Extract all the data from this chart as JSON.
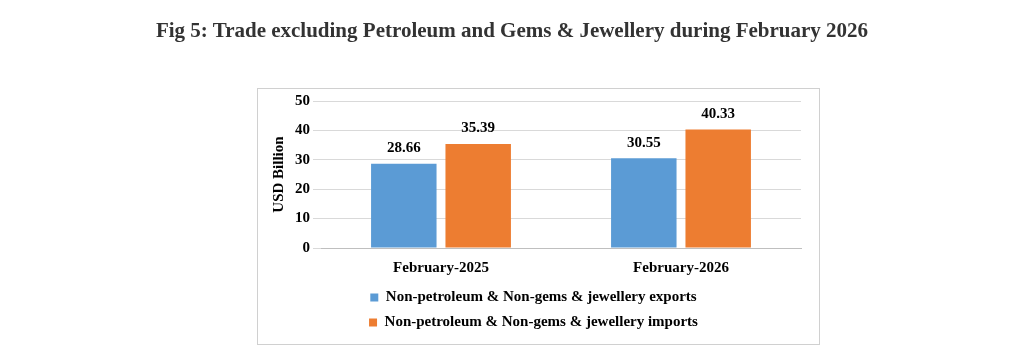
{
  "chart_data": {
    "type": "bar",
    "title": "Fig 5: Trade excluding Petroleum and Gems & Jewellery during February 2026",
    "ylabel": "USD Billion",
    "categories": [
      "February-2025",
      "February-2026"
    ],
    "series": [
      {
        "name": "Non-petroleum & Non-gems & jewellery exports",
        "color": "#5b9bd5",
        "values": [
          28.66,
          30.55
        ]
      },
      {
        "name": "Non-petroleum & Non-gems & jewellery imports",
        "color": "#ed7d31",
        "values": [
          35.39,
          40.33
        ]
      }
    ],
    "ylim": [
      0,
      50
    ],
    "yticks": [
      0,
      10,
      20,
      30,
      40,
      50
    ],
    "grid": "y",
    "legend": "bottom",
    "data_labels": true
  }
}
